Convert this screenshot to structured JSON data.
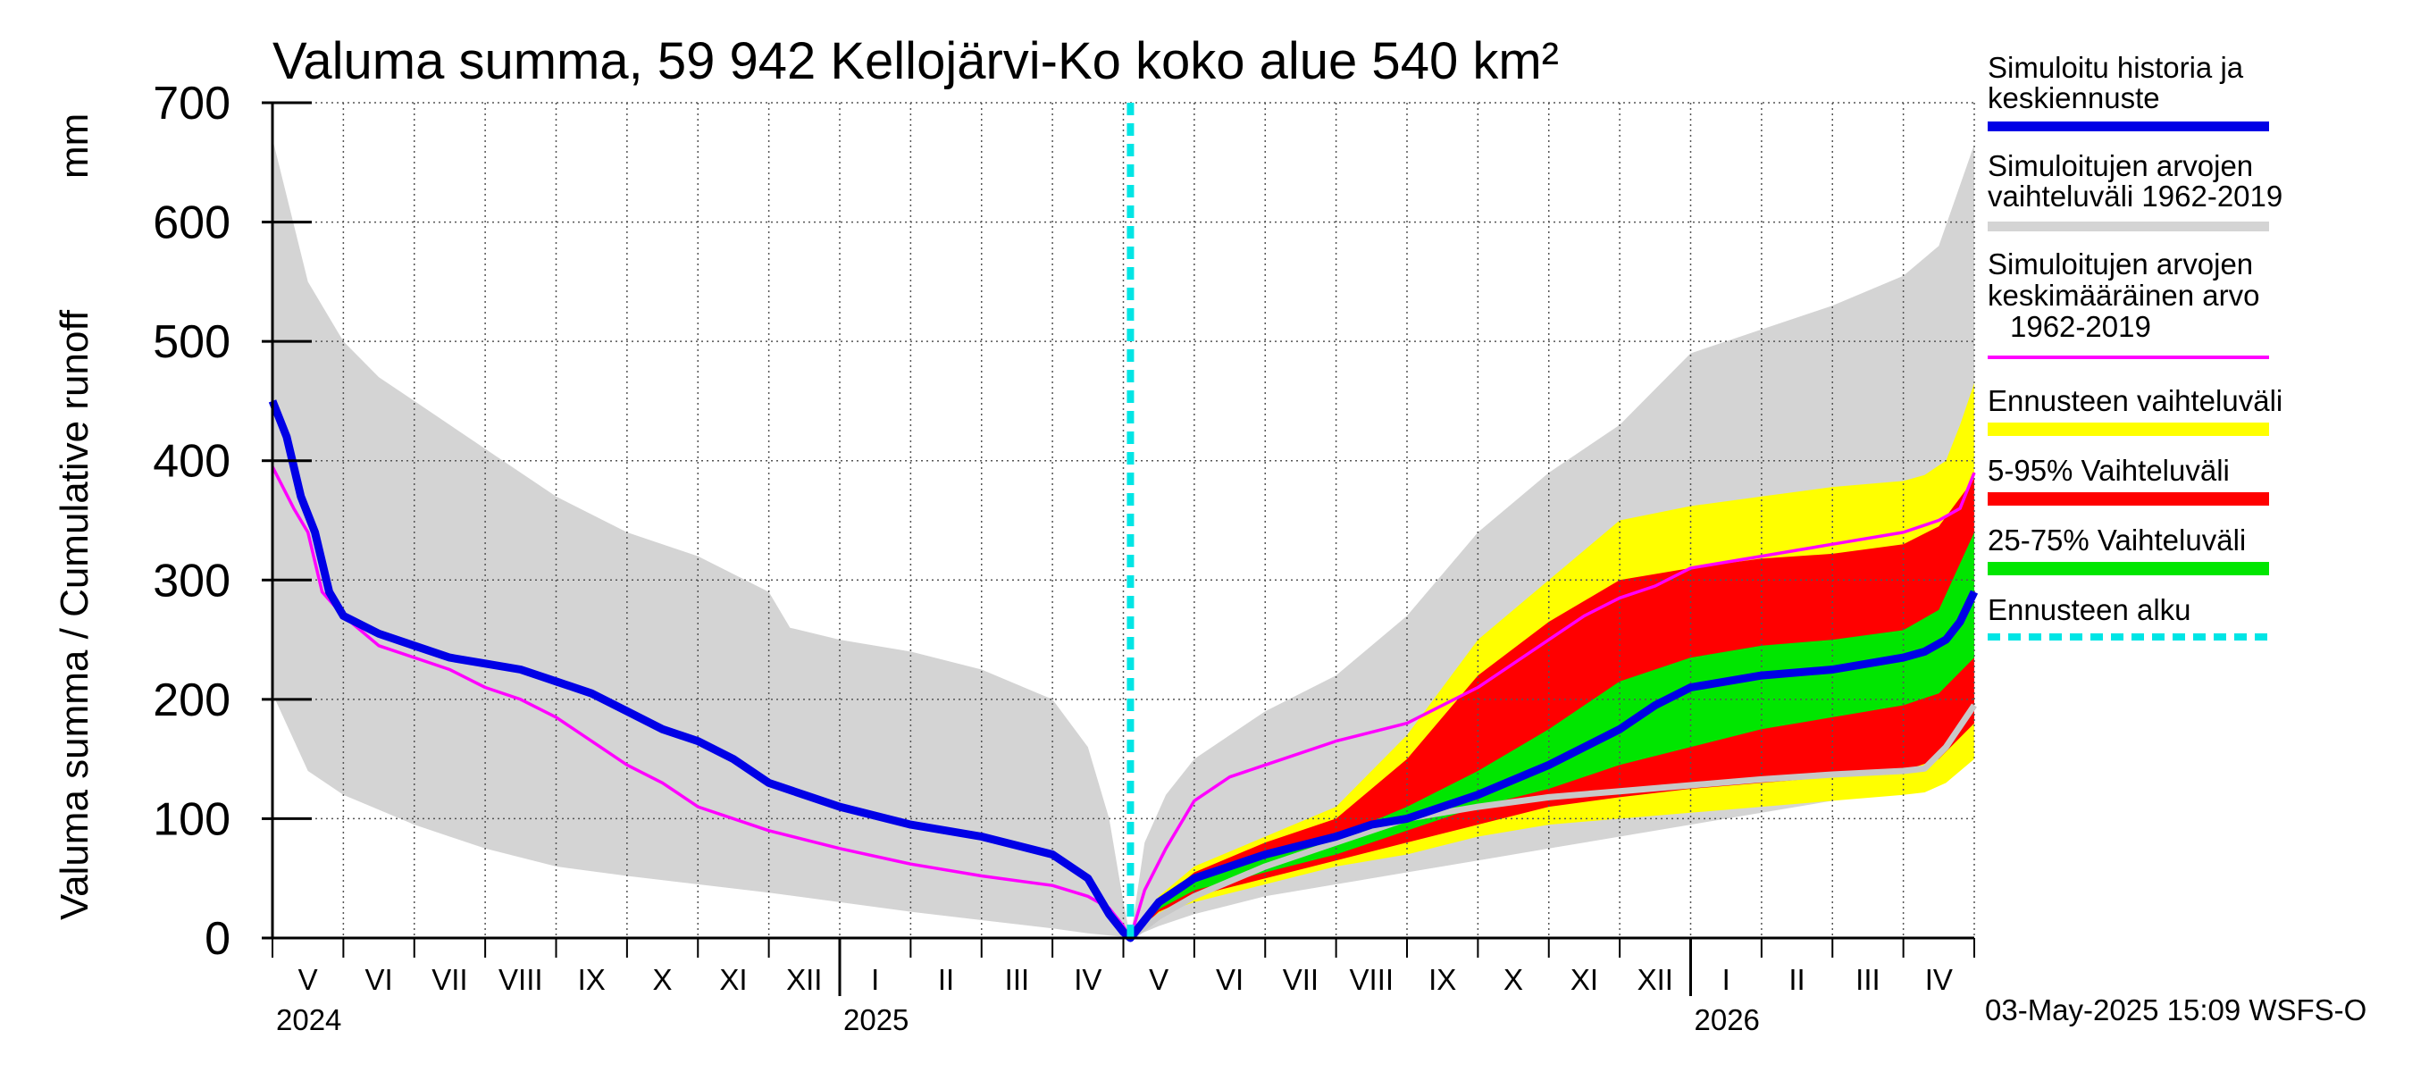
{
  "chart_data": {
    "type": "area",
    "title": "Valuma summa, 59 942 Kellojärvi-Ko koko alue 540 km²",
    "ylabel": "Valuma summa / Cumulative runoff",
    "yunit": "mm",
    "ylim": [
      0,
      700
    ],
    "yticks": [
      0,
      100,
      200,
      300,
      400,
      500,
      600,
      700
    ],
    "x_unit": "months since 2024-04-30 (0 = 2024-04-30, 24 = 2026-04-30)",
    "xlim": [
      0,
      24
    ],
    "forecast_start": 12.1,
    "month_labels": [
      "V",
      "VI",
      "VII",
      "VIII",
      "IX",
      "X",
      "XI",
      "XII",
      "I",
      "II",
      "III",
      "IV",
      "V",
      "VI",
      "VII",
      "VIII",
      "IX",
      "X",
      "XI",
      "XII",
      "I",
      "II",
      "III",
      "IV"
    ],
    "year_labels": [
      {
        "label": "2024",
        "x": 0
      },
      {
        "label": "2025",
        "x": 8
      },
      {
        "label": "2026",
        "x": 20
      }
    ],
    "series": [
      {
        "name": "hist_range_upper",
        "legend_ref": "range",
        "x": [
          0,
          0.5,
          1,
          1.5,
          2,
          3,
          4,
          5,
          6,
          7,
          7.3,
          8,
          9,
          10,
          11,
          11.5,
          11.8,
          12,
          12.1,
          12.3,
          12.6,
          13,
          14,
          15,
          16,
          17,
          18,
          19,
          20,
          21,
          22,
          23,
          23.5,
          24
        ],
        "y": [
          670,
          550,
          500,
          470,
          450,
          410,
          370,
          340,
          320,
          290,
          260,
          250,
          240,
          225,
          200,
          160,
          100,
          30,
          0,
          80,
          120,
          150,
          190,
          220,
          270,
          340,
          390,
          430,
          490,
          510,
          530,
          555,
          580,
          665
        ]
      },
      {
        "name": "hist_range_lower",
        "legend_ref": "range",
        "x": [
          0,
          0.5,
          1,
          2,
          3,
          4,
          5,
          6,
          7,
          8,
          9,
          10,
          11,
          11.5,
          12,
          12.1,
          12.5,
          13,
          14,
          15,
          16,
          17,
          18,
          19,
          20,
          21,
          22,
          23,
          23.5,
          24
        ],
        "y": [
          205,
          140,
          120,
          95,
          75,
          60,
          52,
          45,
          38,
          30,
          22,
          15,
          8,
          4,
          1,
          0,
          10,
          20,
          35,
          45,
          55,
          65,
          75,
          85,
          95,
          105,
          115,
          125,
          130,
          150
        ]
      },
      {
        "name": "ennuste_upper",
        "legend_ref": "ennuste",
        "x": [
          12.1,
          12.5,
          13,
          14,
          15,
          16,
          17,
          18,
          19,
          20,
          21,
          22,
          23,
          23.3,
          23.6,
          23.8,
          24
        ],
        "y": [
          0,
          35,
          60,
          85,
          110,
          170,
          250,
          300,
          350,
          362,
          370,
          378,
          383,
          388,
          400,
          430,
          465
        ]
      },
      {
        "name": "ennuste_lower",
        "legend_ref": "ennuste",
        "x": [
          12.1,
          12.5,
          13,
          14,
          15,
          16,
          17,
          18,
          19,
          20,
          21,
          22,
          23,
          23.3,
          23.6,
          24
        ],
        "y": [
          0,
          20,
          30,
          45,
          60,
          70,
          85,
          95,
          100,
          105,
          110,
          115,
          120,
          122,
          130,
          150
        ]
      },
      {
        "name": "p95",
        "legend_ref": "p5_95",
        "x": [
          12.1,
          12.5,
          13,
          14,
          15,
          16,
          17,
          18,
          19,
          20,
          21,
          22,
          23,
          23.5,
          24
        ],
        "y": [
          0,
          30,
          55,
          80,
          100,
          150,
          220,
          265,
          300,
          310,
          318,
          322,
          330,
          345,
          385
        ]
      },
      {
        "name": "p5",
        "legend_ref": "p5_95",
        "x": [
          12.1,
          12.5,
          13,
          14,
          15,
          16,
          17,
          18,
          19,
          20,
          21,
          22,
          23,
          23.5,
          24
        ],
        "y": [
          0,
          22,
          35,
          50,
          65,
          80,
          95,
          110,
          118,
          125,
          130,
          135,
          140,
          150,
          180
        ]
      },
      {
        "name": "p75",
        "legend_ref": "p25_75",
        "x": [
          12.1,
          12.5,
          13,
          14,
          15,
          16,
          17,
          18,
          19,
          20,
          21,
          22,
          23,
          23.5,
          24
        ],
        "y": [
          0,
          28,
          50,
          70,
          85,
          110,
          140,
          175,
          215,
          235,
          245,
          250,
          258,
          275,
          340
        ]
      },
      {
        "name": "p25",
        "legend_ref": "p25_75",
        "x": [
          12.1,
          12.5,
          13,
          14,
          15,
          16,
          17,
          18,
          19,
          20,
          21,
          22,
          23,
          23.5,
          24
        ],
        "y": [
          0,
          24,
          40,
          55,
          70,
          90,
          110,
          125,
          145,
          160,
          175,
          185,
          195,
          205,
          235
        ]
      },
      {
        "name": "grey_member",
        "legend_ref": "range",
        "x": [
          12.1,
          12.5,
          13,
          14,
          15,
          16,
          17,
          18,
          19,
          20,
          21,
          22,
          23,
          23.3,
          23.6,
          24
        ],
        "y": [
          0,
          18,
          35,
          60,
          80,
          100,
          110,
          118,
          123,
          128,
          133,
          137,
          140,
          142,
          160,
          195
        ]
      },
      {
        "name": "mean_1962_2019",
        "legend_ref": "mean",
        "x": [
          0,
          0.3,
          0.5,
          0.7,
          1,
          1.5,
          2,
          2.5,
          3,
          3.5,
          4,
          4.5,
          5,
          5.5,
          6,
          7,
          8,
          9,
          10,
          11,
          11.5,
          11.8,
          12,
          12.1,
          12.3,
          12.6,
          13,
          13.5,
          14,
          15,
          16,
          17,
          17.5,
          18,
          18.5,
          19,
          19.5,
          20,
          21,
          22,
          23,
          23.5,
          23.8,
          24
        ],
        "y": [
          395,
          360,
          340,
          290,
          270,
          245,
          235,
          225,
          210,
          200,
          185,
          165,
          145,
          130,
          110,
          90,
          75,
          62,
          52,
          44,
          35,
          25,
          10,
          0,
          40,
          75,
          115,
          135,
          145,
          165,
          180,
          210,
          230,
          250,
          270,
          285,
          295,
          310,
          320,
          330,
          340,
          350,
          360,
          390
        ]
      },
      {
        "name": "sim_history",
        "legend_ref": "sim",
        "x": [
          0,
          0.2,
          0.4,
          0.6,
          0.8,
          1,
          1.5,
          2,
          2.5,
          3,
          3.5,
          4,
          4.5,
          5,
          5.5,
          6,
          6.5,
          7,
          8,
          9,
          10,
          11,
          11.5,
          11.8,
          12,
          12.1,
          12.5,
          13,
          13.5,
          14,
          15,
          15.5,
          16,
          17,
          18,
          19,
          19.5,
          20,
          21,
          22,
          23,
          23.3,
          23.6,
          23.8,
          24
        ],
        "y": [
          450,
          420,
          370,
          340,
          290,
          270,
          255,
          245,
          235,
          230,
          225,
          215,
          205,
          190,
          175,
          165,
          150,
          130,
          110,
          95,
          85,
          70,
          50,
          20,
          5,
          0,
          30,
          50,
          60,
          70,
          85,
          95,
          100,
          120,
          145,
          175,
          195,
          210,
          220,
          225,
          235,
          240,
          250,
          265,
          290
        ]
      }
    ]
  },
  "legend": {
    "sim": [
      "Simuloitu historia ja",
      "keskiennuste"
    ],
    "range": [
      "Simuloitujen arvojen",
      "vaihteluväli 1962-2019"
    ],
    "mean": [
      "Simuloitujen arvojen",
      "keskimääräinen arvo",
      "1962-2019"
    ],
    "ennuste": [
      "Ennusteen vaihteluväli"
    ],
    "p5_95": [
      "5-95% Vaihteluväli"
    ],
    "p25_75": [
      "25-75% Vaihteluväli"
    ],
    "start": [
      "Ennusteen alku"
    ]
  },
  "colors": {
    "range": "#d4d4d4",
    "ennuste": "#ffff00",
    "p5_95": "#ff0000",
    "p25_75": "#00e600",
    "mean": "#ff00ff",
    "sim": "#0000e6",
    "start": "#00e5e5",
    "grey_member": "#c8c8c8"
  },
  "footer": "03-May-2025 15:09 WSFS-O"
}
